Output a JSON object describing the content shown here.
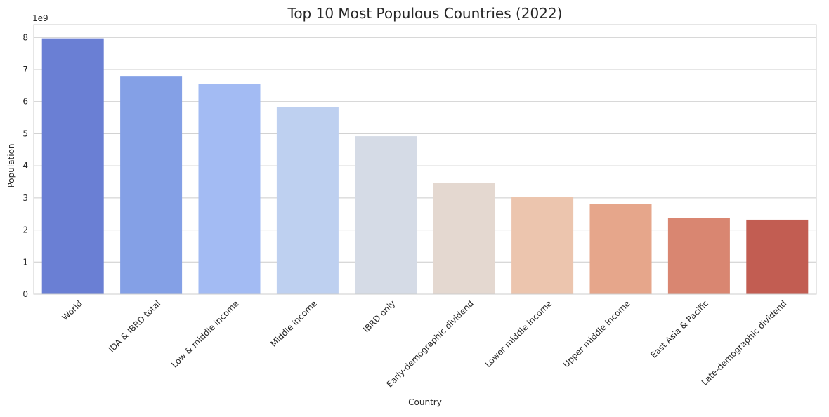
{
  "chart_data": {
    "type": "bar",
    "title": "Top 10 Most Populous Countries (2022)",
    "xlabel": "Country",
    "ylabel": "Population",
    "y_multiplier_label": "1e9",
    "ylim": [
      0,
      8.4
    ],
    "yticks": [
      0,
      1,
      2,
      3,
      4,
      5,
      6,
      7,
      8
    ],
    "ytick_labels": [
      "0",
      "1",
      "2",
      "3",
      "4",
      "5",
      "6",
      "7",
      "8"
    ],
    "grid": "horizontal",
    "categories": [
      "World",
      "IDA & IBRD total",
      "Low & middle income",
      "Middle income",
      "IBRD only",
      "Early-demographic dividend",
      "Lower middle income",
      "Upper middle income",
      "East Asia & Pacific",
      "Late-demographic dividend"
    ],
    "values": [
      7.97,
      6.8,
      6.56,
      5.84,
      4.92,
      3.46,
      3.04,
      2.8,
      2.37,
      2.32
    ],
    "colors": [
      "#6a7fd4",
      "#84a0e6",
      "#a3bbf3",
      "#bed0f0",
      "#d5dbe6",
      "#e4d8d0",
      "#ecc5ae",
      "#e6a68b",
      "#d98671",
      "#c25d52"
    ]
  }
}
